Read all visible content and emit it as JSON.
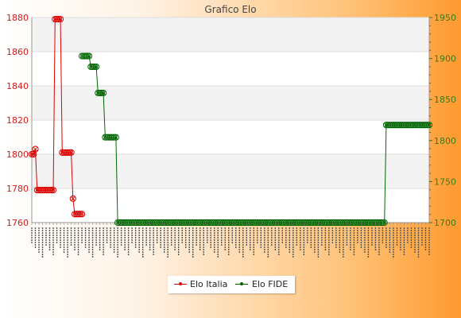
{
  "chart_data": {
    "type": "line",
    "title": "Grafico Elo",
    "y_left": {
      "ylim": [
        1760,
        1880
      ],
      "ticks": [
        1760,
        1780,
        1800,
        1820,
        1840,
        1860,
        1880
      ],
      "color": "#dd0000"
    },
    "y_right": {
      "ylim": [
        1700,
        1950
      ],
      "ticks": [
        1700,
        1750,
        1800,
        1850,
        1900,
        1950
      ],
      "color": "#006600"
    },
    "grid": "horizontal",
    "legend_position": "bottom",
    "series": [
      {
        "name": "Elo Italia",
        "axis": "left",
        "color": "#dd0000",
        "points": [
          [
            0,
            1800
          ],
          [
            1,
            1800
          ],
          [
            2,
            1803
          ],
          [
            3,
            1779
          ],
          [
            4,
            1779
          ],
          [
            5,
            1779
          ],
          [
            6,
            1779
          ],
          [
            7,
            1779
          ],
          [
            8,
            1779
          ],
          [
            9,
            1779
          ],
          [
            10,
            1779
          ],
          [
            11,
            1779
          ],
          [
            12,
            1779
          ],
          [
            13,
            1879
          ],
          [
            14,
            1879
          ],
          [
            15,
            1879
          ],
          [
            16,
            1879
          ],
          [
            17,
            1801
          ],
          [
            18,
            1801
          ],
          [
            19,
            1801
          ],
          [
            20,
            1801
          ],
          [
            21,
            1801
          ],
          [
            22,
            1801
          ],
          [
            23,
            1774
          ],
          [
            24,
            1765
          ],
          [
            25,
            1765
          ],
          [
            26,
            1765
          ],
          [
            27,
            1765
          ],
          [
            28,
            1765
          ]
        ]
      },
      {
        "name": "Elo FIDE",
        "axis": "right",
        "color": "#006600",
        "points": [
          [
            28,
            1903
          ],
          [
            29,
            1903
          ],
          [
            30,
            1903
          ],
          [
            31,
            1903
          ],
          [
            32,
            1903
          ],
          [
            33,
            1890
          ],
          [
            34,
            1890
          ],
          [
            35,
            1890
          ],
          [
            36,
            1890
          ],
          [
            37,
            1858
          ],
          [
            38,
            1858
          ],
          [
            39,
            1858
          ],
          [
            40,
            1858
          ],
          [
            41,
            1804
          ],
          [
            42,
            1804
          ],
          [
            43,
            1804
          ],
          [
            44,
            1804
          ],
          [
            45,
            1804
          ],
          [
            46,
            1804
          ],
          [
            47,
            1804
          ],
          [
            48,
            1700
          ],
          [
            49,
            1700
          ],
          [
            50,
            1700
          ],
          [
            51,
            1700
          ],
          [
            52,
            1700
          ],
          [
            53,
            1700
          ],
          [
            54,
            1700
          ],
          [
            55,
            1700
          ],
          [
            56,
            1700
          ],
          [
            57,
            1700
          ],
          [
            58,
            1700
          ],
          [
            59,
            1700
          ],
          [
            60,
            1700
          ],
          [
            61,
            1700
          ],
          [
            62,
            1700
          ],
          [
            63,
            1700
          ],
          [
            64,
            1700
          ],
          [
            65,
            1700
          ],
          [
            66,
            1700
          ],
          [
            67,
            1700
          ],
          [
            68,
            1700
          ],
          [
            69,
            1700
          ],
          [
            70,
            1700
          ],
          [
            71,
            1700
          ],
          [
            72,
            1700
          ],
          [
            73,
            1700
          ],
          [
            74,
            1700
          ],
          [
            75,
            1700
          ],
          [
            76,
            1700
          ],
          [
            77,
            1700
          ],
          [
            78,
            1700
          ],
          [
            79,
            1700
          ],
          [
            80,
            1700
          ],
          [
            81,
            1700
          ],
          [
            82,
            1700
          ],
          [
            83,
            1700
          ],
          [
            84,
            1700
          ],
          [
            85,
            1700
          ],
          [
            86,
            1700
          ],
          [
            87,
            1700
          ],
          [
            88,
            1700
          ],
          [
            89,
            1700
          ],
          [
            90,
            1700
          ],
          [
            91,
            1700
          ],
          [
            92,
            1700
          ],
          [
            93,
            1700
          ],
          [
            94,
            1700
          ],
          [
            95,
            1700
          ],
          [
            96,
            1700
          ],
          [
            97,
            1700
          ],
          [
            98,
            1700
          ],
          [
            99,
            1700
          ],
          [
            100,
            1700
          ],
          [
            101,
            1700
          ],
          [
            102,
            1700
          ],
          [
            103,
            1700
          ],
          [
            104,
            1700
          ],
          [
            105,
            1700
          ],
          [
            106,
            1700
          ],
          [
            107,
            1700
          ],
          [
            108,
            1700
          ],
          [
            109,
            1700
          ],
          [
            110,
            1700
          ],
          [
            111,
            1700
          ],
          [
            112,
            1700
          ],
          [
            113,
            1700
          ],
          [
            114,
            1700
          ],
          [
            115,
            1700
          ],
          [
            116,
            1700
          ],
          [
            117,
            1700
          ],
          [
            118,
            1700
          ],
          [
            119,
            1700
          ],
          [
            120,
            1700
          ],
          [
            121,
            1700
          ],
          [
            122,
            1700
          ],
          [
            123,
            1700
          ],
          [
            124,
            1700
          ],
          [
            125,
            1700
          ],
          [
            126,
            1700
          ],
          [
            127,
            1700
          ],
          [
            128,
            1700
          ],
          [
            129,
            1700
          ],
          [
            130,
            1700
          ],
          [
            131,
            1700
          ],
          [
            132,
            1700
          ],
          [
            133,
            1700
          ],
          [
            134,
            1700
          ],
          [
            135,
            1700
          ],
          [
            136,
            1700
          ],
          [
            137,
            1700
          ],
          [
            138,
            1700
          ],
          [
            139,
            1700
          ],
          [
            140,
            1700
          ],
          [
            141,
            1700
          ],
          [
            142,
            1700
          ],
          [
            143,
            1700
          ],
          [
            144,
            1700
          ],
          [
            145,
            1700
          ],
          [
            146,
            1700
          ],
          [
            147,
            1700
          ],
          [
            148,
            1700
          ],
          [
            149,
            1700
          ],
          [
            150,
            1700
          ],
          [
            151,
            1700
          ],
          [
            152,
            1700
          ],
          [
            153,
            1700
          ],
          [
            154,
            1700
          ],
          [
            155,
            1700
          ],
          [
            156,
            1700
          ],
          [
            157,
            1700
          ],
          [
            158,
            1700
          ],
          [
            159,
            1700
          ],
          [
            160,
            1700
          ],
          [
            161,
            1700
          ],
          [
            162,
            1700
          ],
          [
            163,
            1700
          ],
          [
            164,
            1700
          ],
          [
            165,
            1700
          ],
          [
            166,
            1700
          ],
          [
            167,
            1700
          ],
          [
            168,
            1700
          ],
          [
            169,
            1700
          ],
          [
            170,
            1700
          ],
          [
            171,
            1700
          ],
          [
            172,
            1700
          ],
          [
            173,
            1700
          ],
          [
            174,
            1700
          ],
          [
            175,
            1700
          ],
          [
            176,
            1700
          ],
          [
            177,
            1700
          ],
          [
            178,
            1700
          ],
          [
            179,
            1700
          ],
          [
            180,
            1700
          ],
          [
            181,
            1700
          ],
          [
            182,
            1700
          ],
          [
            183,
            1700
          ],
          [
            184,
            1700
          ],
          [
            185,
            1700
          ],
          [
            186,
            1700
          ],
          [
            187,
            1700
          ],
          [
            188,
            1700
          ],
          [
            189,
            1700
          ],
          [
            190,
            1700
          ],
          [
            191,
            1700
          ],
          [
            192,
            1700
          ],
          [
            193,
            1700
          ],
          [
            194,
            1700
          ],
          [
            195,
            1700
          ],
          [
            196,
            1700
          ],
          [
            197,
            1700
          ],
          [
            198,
            1819
          ],
          [
            199,
            1819
          ],
          [
            200,
            1819
          ],
          [
            201,
            1819
          ],
          [
            202,
            1819
          ],
          [
            203,
            1819
          ],
          [
            204,
            1819
          ],
          [
            205,
            1819
          ],
          [
            206,
            1819
          ],
          [
            207,
            1819
          ],
          [
            208,
            1819
          ],
          [
            209,
            1819
          ],
          [
            210,
            1819
          ],
          [
            211,
            1819
          ],
          [
            212,
            1819
          ],
          [
            213,
            1819
          ],
          [
            214,
            1819
          ],
          [
            215,
            1819
          ],
          [
            216,
            1819
          ],
          [
            217,
            1819
          ],
          [
            218,
            1819
          ],
          [
            219,
            1819
          ],
          [
            220,
            1819
          ],
          [
            221,
            1819
          ],
          [
            222,
            1819
          ]
        ]
      }
    ],
    "legend": [
      {
        "label": "Elo Italia",
        "color": "#dd0000"
      },
      {
        "label": "Elo FIDE",
        "color": "#006600"
      }
    ]
  }
}
